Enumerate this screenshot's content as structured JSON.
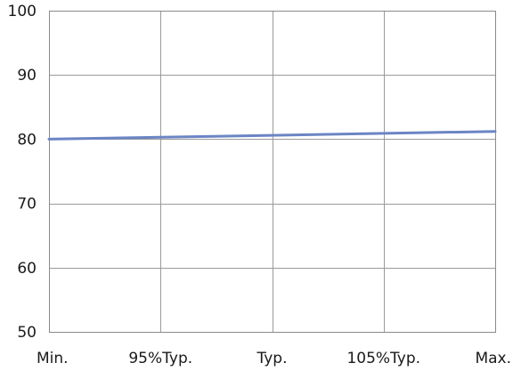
{
  "chart_data": {
    "type": "line",
    "categories": [
      "Min.",
      "95%Typ.",
      "Typ.",
      "105%Typ.",
      "Max."
    ],
    "series": [
      {
        "values": [
          80.0,
          80.3,
          80.6,
          80.9,
          81.2
        ],
        "color": "#6b85c4"
      }
    ],
    "yticks": [
      50,
      60,
      70,
      80,
      90,
      100
    ],
    "ylim": [
      50,
      100
    ],
    "title": "",
    "xlabel": "",
    "ylabel": "",
    "grid": true,
    "legend": "none"
  }
}
